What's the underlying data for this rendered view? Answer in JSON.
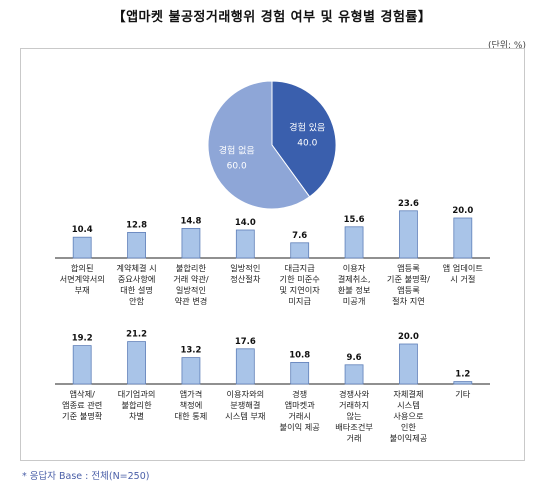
{
  "title": "【앱마켓 불공정거래행위 경험 여부 및 유형별 경험률】",
  "unit": "(단위: %)",
  "footnote": "* 응답자 Base : 전체(N=250)",
  "colors": {
    "pie_yes": "#3a5fad",
    "pie_no": "#8ea6d7",
    "bar_fill": "#a9c4e8",
    "bar_stroke": "#5f7fb8",
    "axis": "#222222"
  },
  "chart_data": [
    {
      "type": "pie",
      "slices": [
        {
          "label": "경험 있음",
          "value": 40.0
        },
        {
          "label": "경험 없음",
          "value": 60.0
        }
      ]
    },
    {
      "type": "bar",
      "categories": [
        "합의된\n서면계약서의\n부재",
        "계약체결 시\n중요사항에\n대한 설명\n안함",
        "불합리한\n거래 약관/\n일방적인\n약관 변경",
        "일방적인\n정산절차",
        "대금지급\n기한 미준수\n및 지연이자\n미지급",
        "이용자\n결제취소,\n환불 정보\n미공개",
        "앱등록\n기준 불명확/\n앱등록\n절차 지연",
        "앱 업데이트\n시 거절"
      ],
      "values": [
        10.4,
        12.8,
        14.8,
        14.0,
        7.6,
        15.6,
        23.6,
        20.0
      ],
      "ylim": [
        0,
        25
      ]
    },
    {
      "type": "bar",
      "categories": [
        "앱삭제/\n앱종료 관련\n기준 불명확",
        "대기업과의\n불합리한\n차별",
        "앱가격\n책정에\n대한 통제",
        "이용자와의\n분쟁해결\n시스템 부재",
        "경쟁\n앱마켓과\n거래시\n불이익 제공",
        "경쟁사와\n거래하지\n않는\n배타조건부\n거래",
        "자체결제\n시스템\n사용으로\n인한\n불이익제공",
        "기타"
      ],
      "values": [
        19.2,
        21.2,
        13.2,
        17.6,
        10.8,
        9.6,
        20.0,
        1.2
      ],
      "ylim": [
        0,
        25
      ]
    }
  ]
}
